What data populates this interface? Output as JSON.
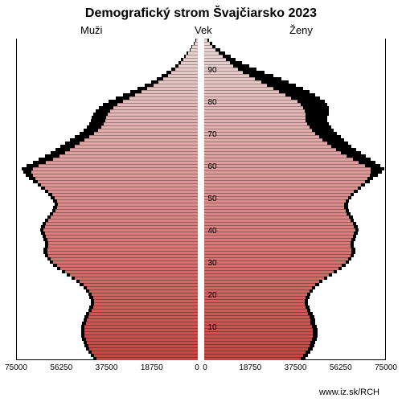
{
  "chart": {
    "type": "population-pyramid",
    "title": "Demografický strom Švajčiarsko 2023",
    "title_fontsize": 16,
    "title_fontweight": "bold",
    "label_left": "Muži",
    "label_center": "Vek",
    "label_right": "Ženy",
    "label_fontsize": 13,
    "background_color": "#ffffff",
    "border_color": "#000000",
    "bar_outline_color": "#000000",
    "x_axis": {
      "max": 75000,
      "ticks_left": [
        "75000",
        "56250",
        "37500",
        "18750",
        "0"
      ],
      "ticks_right": [
        "0",
        "18750",
        "37500",
        "56250",
        "75000"
      ],
      "tick_fontsize": 10
    },
    "y_axis": {
      "min": 0,
      "max": 100,
      "tick_step": 10,
      "ticks": [
        "10",
        "20",
        "30",
        "40",
        "50",
        "60",
        "70",
        "80",
        "90"
      ],
      "tick_fontsize": 10
    },
    "gradient": {
      "top_color": "#e8d8d8",
      "bottom_color": "#d24040"
    },
    "ages": [
      {
        "age": 0,
        "m": 42000,
        "f": 40000,
        "mb": 43500,
        "fb": 42000
      },
      {
        "age": 1,
        "m": 43000,
        "f": 41000,
        "mb": 44500,
        "fb": 43000
      },
      {
        "age": 2,
        "m": 44000,
        "f": 42000,
        "mb": 45500,
        "fb": 44000
      },
      {
        "age": 3,
        "m": 45000,
        "f": 43000,
        "mb": 46500,
        "fb": 45000
      },
      {
        "age": 4,
        "m": 45500,
        "f": 43500,
        "mb": 47000,
        "fb": 45500
      },
      {
        "age": 5,
        "m": 46000,
        "f": 44000,
        "mb": 47500,
        "fb": 46000
      },
      {
        "age": 6,
        "m": 46500,
        "f": 44500,
        "mb": 48000,
        "fb": 46500
      },
      {
        "age": 7,
        "m": 47000,
        "f": 45000,
        "mb": 48500,
        "fb": 47000
      },
      {
        "age": 8,
        "m": 47000,
        "f": 45000,
        "mb": 48500,
        "fb": 47000
      },
      {
        "age": 9,
        "m": 47000,
        "f": 45000,
        "mb": 48500,
        "fb": 47000
      },
      {
        "age": 10,
        "m": 47000,
        "f": 44500,
        "mb": 48500,
        "fb": 46500
      },
      {
        "age": 11,
        "m": 46500,
        "f": 44000,
        "mb": 48000,
        "fb": 46000
      },
      {
        "age": 12,
        "m": 46000,
        "f": 44000,
        "mb": 47500,
        "fb": 46000
      },
      {
        "age": 13,
        "m": 45500,
        "f": 43500,
        "mb": 47000,
        "fb": 45500
      },
      {
        "age": 14,
        "m": 45000,
        "f": 43000,
        "mb": 46500,
        "fb": 45000
      },
      {
        "age": 15,
        "m": 44000,
        "f": 42500,
        "mb": 45500,
        "fb": 44000
      },
      {
        "age": 16,
        "m": 43500,
        "f": 42000,
        "mb": 45000,
        "fb": 43500
      },
      {
        "age": 17,
        "m": 43000,
        "f": 41500,
        "mb": 44500,
        "fb": 43000
      },
      {
        "age": 18,
        "m": 43000,
        "f": 41500,
        "mb": 44500,
        "fb": 43000
      },
      {
        "age": 19,
        "m": 43500,
        "f": 42000,
        "mb": 45000,
        "fb": 43500
      },
      {
        "age": 20,
        "m": 44000,
        "f": 42500,
        "mb": 45500,
        "fb": 44000
      },
      {
        "age": 21,
        "m": 45000,
        "f": 43500,
        "mb": 46500,
        "fb": 45000
      },
      {
        "age": 22,
        "m": 46000,
        "f": 44500,
        "mb": 47500,
        "fb": 46000
      },
      {
        "age": 23,
        "m": 47500,
        "f": 46000,
        "mb": 49000,
        "fb": 47500
      },
      {
        "age": 24,
        "m": 49000,
        "f": 47500,
        "mb": 50500,
        "fb": 49000
      },
      {
        "age": 25,
        "m": 51000,
        "f": 49500,
        "mb": 52500,
        "fb": 51000
      },
      {
        "age": 26,
        "m": 53000,
        "f": 51500,
        "mb": 54500,
        "fb": 53000
      },
      {
        "age": 27,
        "m": 55000,
        "f": 53500,
        "mb": 56500,
        "fb": 55000
      },
      {
        "age": 28,
        "m": 57000,
        "f": 55500,
        "mb": 58500,
        "fb": 57000
      },
      {
        "age": 29,
        "m": 58500,
        "f": 57000,
        "mb": 60000,
        "fb": 58500
      },
      {
        "age": 30,
        "m": 60000,
        "f": 58500,
        "mb": 61500,
        "fb": 60000
      },
      {
        "age": 31,
        "m": 61000,
        "f": 59500,
        "mb": 62500,
        "fb": 61000
      },
      {
        "age": 32,
        "m": 62000,
        "f": 60500,
        "mb": 63500,
        "fb": 62000
      },
      {
        "age": 33,
        "m": 62500,
        "f": 61000,
        "mb": 64000,
        "fb": 62500
      },
      {
        "age": 34,
        "m": 62500,
        "f": 61000,
        "mb": 64000,
        "fb": 62500
      },
      {
        "age": 35,
        "m": 62000,
        "f": 60500,
        "mb": 63500,
        "fb": 62000
      },
      {
        "age": 36,
        "m": 62000,
        "f": 60500,
        "mb": 63500,
        "fb": 62000
      },
      {
        "age": 37,
        "m": 62500,
        "f": 61000,
        "mb": 64000,
        "fb": 62500
      },
      {
        "age": 38,
        "m": 63000,
        "f": 61500,
        "mb": 64500,
        "fb": 63000
      },
      {
        "age": 39,
        "m": 63500,
        "f": 62000,
        "mb": 65000,
        "fb": 63500
      },
      {
        "age": 40,
        "m": 64000,
        "f": 62500,
        "mb": 65500,
        "fb": 64000
      },
      {
        "age": 41,
        "m": 63500,
        "f": 62000,
        "mb": 65000,
        "fb": 63500
      },
      {
        "age": 42,
        "m": 63000,
        "f": 61500,
        "mb": 64500,
        "fb": 63000
      },
      {
        "age": 43,
        "m": 62000,
        "f": 60500,
        "mb": 63500,
        "fb": 62000
      },
      {
        "age": 44,
        "m": 61000,
        "f": 60000,
        "mb": 62500,
        "fb": 61500
      },
      {
        "age": 45,
        "m": 60000,
        "f": 59000,
        "mb": 61500,
        "fb": 60500
      },
      {
        "age": 46,
        "m": 59000,
        "f": 58500,
        "mb": 60500,
        "fb": 60000
      },
      {
        "age": 47,
        "m": 58500,
        "f": 58000,
        "mb": 60000,
        "fb": 59500
      },
      {
        "age": 48,
        "m": 58000,
        "f": 58000,
        "mb": 59500,
        "fb": 59500
      },
      {
        "age": 49,
        "m": 58500,
        "f": 58500,
        "mb": 60000,
        "fb": 60000
      },
      {
        "age": 50,
        "m": 59500,
        "f": 59500,
        "mb": 61000,
        "fb": 61000
      },
      {
        "age": 51,
        "m": 60500,
        "f": 60500,
        "mb": 62000,
        "fb": 62000
      },
      {
        "age": 52,
        "m": 62000,
        "f": 62000,
        "mb": 63500,
        "fb": 63500
      },
      {
        "age": 53,
        "m": 63500,
        "f": 63500,
        "mb": 65000,
        "fb": 65000
      },
      {
        "age": 54,
        "m": 65000,
        "f": 65000,
        "mb": 66500,
        "fb": 66500
      },
      {
        "age": 55,
        "m": 66500,
        "f": 66500,
        "mb": 68500,
        "fb": 68500
      },
      {
        "age": 56,
        "m": 67500,
        "f": 67500,
        "mb": 70000,
        "fb": 70000
      },
      {
        "age": 57,
        "m": 68500,
        "f": 68500,
        "mb": 71500,
        "fb": 72000
      },
      {
        "age": 58,
        "m": 69000,
        "f": 69000,
        "mb": 72500,
        "fb": 73500
      },
      {
        "age": 59,
        "m": 68500,
        "f": 69000,
        "mb": 73000,
        "fb": 74500
      },
      {
        "age": 60,
        "m": 66000,
        "f": 66500,
        "mb": 71000,
        "fb": 73000
      },
      {
        "age": 61,
        "m": 63000,
        "f": 64000,
        "mb": 68500,
        "fb": 71000
      },
      {
        "age": 62,
        "m": 60000,
        "f": 61500,
        "mb": 66000,
        "fb": 69000
      },
      {
        "age": 63,
        "m": 57500,
        "f": 59000,
        "mb": 63500,
        "fb": 67000
      },
      {
        "age": 64,
        "m": 55000,
        "f": 56500,
        "mb": 61000,
        "fb": 65000
      },
      {
        "age": 65,
        "m": 53000,
        "f": 54500,
        "mb": 59000,
        "fb": 63000
      },
      {
        "age": 66,
        "m": 51000,
        "f": 52500,
        "mb": 57000,
        "fb": 61000
      },
      {
        "age": 67,
        "m": 49000,
        "f": 51000,
        "mb": 55000,
        "fb": 59500
      },
      {
        "age": 68,
        "m": 47000,
        "f": 49000,
        "mb": 53000,
        "fb": 58000
      },
      {
        "age": 69,
        "m": 45000,
        "f": 47500,
        "mb": 51000,
        "fb": 56500
      },
      {
        "age": 70,
        "m": 43000,
        "f": 46000,
        "mb": 49000,
        "fb": 55000
      },
      {
        "age": 71,
        "m": 41500,
        "f": 44500,
        "mb": 47500,
        "fb": 53500
      },
      {
        "age": 72,
        "m": 40000,
        "f": 43500,
        "mb": 46000,
        "fb": 52500
      },
      {
        "age": 73,
        "m": 39000,
        "f": 42500,
        "mb": 45000,
        "fb": 51500
      },
      {
        "age": 74,
        "m": 38500,
        "f": 42000,
        "mb": 44500,
        "fb": 51000
      },
      {
        "age": 75,
        "m": 38000,
        "f": 42000,
        "mb": 44000,
        "fb": 51000
      },
      {
        "age": 76,
        "m": 37500,
        "f": 42000,
        "mb": 43500,
        "fb": 51500
      },
      {
        "age": 77,
        "m": 36500,
        "f": 41500,
        "mb": 42500,
        "fb": 51500
      },
      {
        "age": 78,
        "m": 35000,
        "f": 41000,
        "mb": 41000,
        "fb": 51500
      },
      {
        "age": 79,
        "m": 33500,
        "f": 40000,
        "mb": 39500,
        "fb": 51000
      },
      {
        "age": 80,
        "m": 31000,
        "f": 38500,
        "mb": 37000,
        "fb": 50000
      },
      {
        "age": 81,
        "m": 28500,
        "f": 36000,
        "mb": 34000,
        "fb": 48000
      },
      {
        "age": 82,
        "m": 26000,
        "f": 33500,
        "mb": 31000,
        "fb": 46000
      },
      {
        "age": 83,
        "m": 23500,
        "f": 31000,
        "mb": 28000,
        "fb": 43500
      },
      {
        "age": 84,
        "m": 21000,
        "f": 28500,
        "mb": 25000,
        "fb": 41000
      },
      {
        "age": 85,
        "m": 18500,
        "f": 26000,
        "mb": 22000,
        "fb": 38000
      },
      {
        "age": 86,
        "m": 16500,
        "f": 23500,
        "mb": 19500,
        "fb": 35000
      },
      {
        "age": 87,
        "m": 14500,
        "f": 21000,
        "mb": 17000,
        "fb": 32000
      },
      {
        "age": 88,
        "m": 12500,
        "f": 18500,
        "mb": 15000,
        "fb": 28500
      },
      {
        "age": 89,
        "m": 11000,
        "f": 16000,
        "mb": 13000,
        "fb": 25000
      },
      {
        "age": 90,
        "m": 9500,
        "f": 14000,
        "mb": 11000,
        "fb": 21500
      },
      {
        "age": 91,
        "m": 8000,
        "f": 12000,
        "mb": 9500,
        "fb": 18500
      },
      {
        "age": 92,
        "m": 7000,
        "f": 10500,
        "mb": 8000,
        "fb": 15500
      },
      {
        "age": 93,
        "m": 6000,
        "f": 9000,
        "mb": 7000,
        "fb": 13000
      },
      {
        "age": 94,
        "m": 5000,
        "f": 7500,
        "mb": 5800,
        "fb": 11000
      },
      {
        "age": 95,
        "m": 4000,
        "f": 6000,
        "mb": 4600,
        "fb": 8500
      },
      {
        "age": 96,
        "m": 3000,
        "f": 4500,
        "mb": 3500,
        "fb": 6500
      },
      {
        "age": 97,
        "m": 2200,
        "f": 3200,
        "mb": 2600,
        "fb": 4800
      },
      {
        "age": 98,
        "m": 1500,
        "f": 2200,
        "mb": 1800,
        "fb": 3400
      },
      {
        "age": 99,
        "m": 800,
        "f": 1300,
        "mb": 1000,
        "fb": 2100
      }
    ],
    "footer_url": "www.iz.sk/RCH",
    "footer_fontsize": 11
  }
}
